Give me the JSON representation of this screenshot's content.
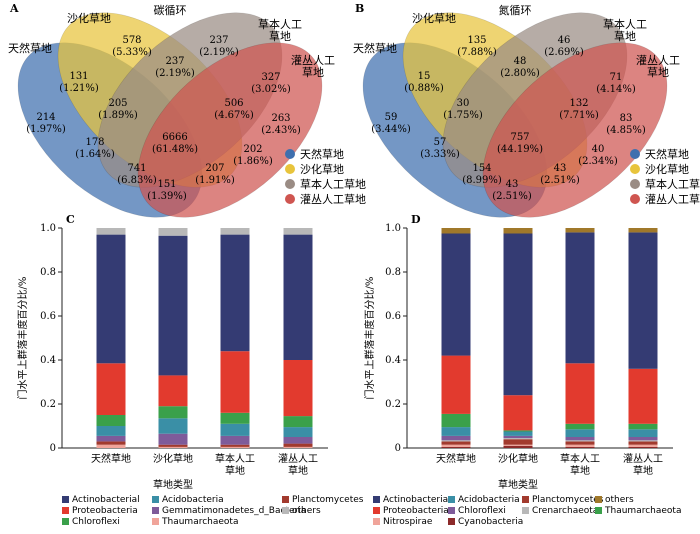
{
  "chart_data": [
    {
      "panel": "A",
      "type": "venn",
      "title": "碳循环",
      "sets": [
        "天然草地",
        "沙化草地",
        "草本人工草地",
        "灌丛人工草地"
      ],
      "set_labels": [
        "天然草地",
        "沙化草地",
        "草本人工\n草地",
        "灌丛人工\n草地"
      ],
      "colors": [
        "#3f6fae",
        "#e8c43c",
        "#9a8c84",
        "#cf5550"
      ],
      "regions": [
        {
          "sets": "1",
          "count": "214",
          "pct": "(1.97%)"
        },
        {
          "sets": "2",
          "count": "578",
          "pct": "(5.33%)"
        },
        {
          "sets": "3",
          "count": "237",
          "pct": "(2.19%)"
        },
        {
          "sets": "4",
          "count": "263",
          "pct": "(2.43%)"
        },
        {
          "sets": "12",
          "count": "131",
          "pct": "(1.21%)"
        },
        {
          "sets": "23",
          "count": "237",
          "pct": "(2.19%)"
        },
        {
          "sets": "34",
          "count": "327",
          "pct": "(3.02%)"
        },
        {
          "sets": "123",
          "count": "205",
          "pct": "(1.89%)"
        },
        {
          "sets": "234",
          "count": "506",
          "pct": "(4.67%)"
        },
        {
          "sets": "1234",
          "count": "6666",
          "pct": "(61.48%)"
        },
        {
          "sets": "13",
          "count": "178",
          "pct": "(1.64%)"
        },
        {
          "sets": "24",
          "count": "202",
          "pct": "(1.86%)"
        },
        {
          "sets": "134",
          "count": "741",
          "pct": "(6.83%)"
        },
        {
          "sets": "124",
          "count": "207",
          "pct": "(1.91%)"
        },
        {
          "sets": "14",
          "count": "151",
          "pct": "(1.39%)"
        }
      ]
    },
    {
      "panel": "B",
      "type": "venn",
      "title": "氮循环",
      "sets": [
        "天然草地",
        "沙化草地",
        "草本人工草地",
        "灌丛人工草地"
      ],
      "set_labels": [
        "天然草地",
        "沙化草地",
        "草本人工\n草地",
        "灌丛人工\n草地"
      ],
      "colors": [
        "#3f6fae",
        "#e8c43c",
        "#9a8c84",
        "#cf5550"
      ],
      "regions": [
        {
          "sets": "1",
          "count": "59",
          "pct": "(3.44%)"
        },
        {
          "sets": "2",
          "count": "135",
          "pct": "(7.88%)"
        },
        {
          "sets": "3",
          "count": "46",
          "pct": "(2.69%)"
        },
        {
          "sets": "4",
          "count": "83",
          "pct": "(4.85%)"
        },
        {
          "sets": "12",
          "count": "15",
          "pct": "(0.88%)"
        },
        {
          "sets": "23",
          "count": "48",
          "pct": "(2.80%)"
        },
        {
          "sets": "34",
          "count": "71",
          "pct": "(4.14%)"
        },
        {
          "sets": "123",
          "count": "30",
          "pct": "(1.75%)"
        },
        {
          "sets": "234",
          "count": "132",
          "pct": "(7.71%)"
        },
        {
          "sets": "1234",
          "count": "757",
          "pct": "(44.19%)"
        },
        {
          "sets": "13",
          "count": "57",
          "pct": "(3.33%)"
        },
        {
          "sets": "24",
          "count": "40",
          "pct": "(2.34%)"
        },
        {
          "sets": "134",
          "count": "154",
          "pct": "(8.99%)"
        },
        {
          "sets": "124",
          "count": "43",
          "pct": "(2.51%)"
        },
        {
          "sets": "14",
          "count": "43",
          "pct": "(2.51%)"
        }
      ]
    },
    {
      "panel": "C",
      "type": "bar",
      "stacked": true,
      "categories": [
        "天然草地",
        "沙化草地",
        "草本人工\n草地",
        "灌丛人工\n草地"
      ],
      "xlabel": "草地类型",
      "ylabel": "门水平上群落丰度百分比/%",
      "ylim": [
        0,
        1
      ],
      "yticks": [
        "0",
        "0.2",
        "0.4",
        "0.6",
        "0.8",
        "1.0"
      ],
      "series": [
        {
          "name": "Thaumarchaeota",
          "color": "#f0a49a",
          "values": [
            0.015,
            0.005,
            0.005,
            0.005
          ]
        },
        {
          "name": "Planctomycetes",
          "color": "#a23a2e",
          "values": [
            0.015,
            0.01,
            0.01,
            0.015
          ]
        },
        {
          "name": "Gemmatimonadetes_d_Bacteria",
          "color": "#7e5b9a",
          "values": [
            0.025,
            0.05,
            0.04,
            0.03
          ]
        },
        {
          "name": "Acidobacteria",
          "color": "#3a8fa6",
          "values": [
            0.045,
            0.07,
            0.055,
            0.045
          ]
        },
        {
          "name": "Chloroflexi",
          "color": "#3aa04a",
          "values": [
            0.05,
            0.055,
            0.05,
            0.05
          ]
        },
        {
          "name": "Proteobacteria",
          "color": "#e23a2e",
          "values": [
            0.235,
            0.14,
            0.28,
            0.255
          ]
        },
        {
          "name": "Actinobacterial",
          "color": "#343b73",
          "values": [
            0.585,
            0.635,
            0.53,
            0.57
          ]
        },
        {
          "name": "others",
          "color": "#b8b8b8",
          "values": [
            0.03,
            0.035,
            0.03,
            0.03
          ]
        }
      ],
      "legend": [
        "Actinobacterial",
        "Acidobacteria",
        "Planctomycetes",
        "Proteobacteria",
        "Gemmatimonadetes_d_Bacteria",
        "others",
        "Chloroflexi",
        "Thaumarchaeota"
      ]
    },
    {
      "panel": "D",
      "type": "bar",
      "stacked": true,
      "categories": [
        "天然草地",
        "沙化草地",
        "草本人工\n草地",
        "灌丛人工\n草地"
      ],
      "xlabel": "草地类型",
      "ylabel": "门水平上群落丰度百分比/%",
      "ylim": [
        0,
        1
      ],
      "yticks": [
        "0",
        "0.2",
        "0.4",
        "0.6",
        "0.8",
        "1.0"
      ],
      "series": [
        {
          "name": "Cyanobacteria",
          "color": "#8c2a2a",
          "values": [
            0.005,
            0.01,
            0.005,
            0.005
          ]
        },
        {
          "name": "Nitrospirae",
          "color": "#f0a49a",
          "values": [
            0.01,
            0.005,
            0.01,
            0.01
          ]
        },
        {
          "name": "Planctomycetes",
          "color": "#a23a2e",
          "values": [
            0.015,
            0.025,
            0.015,
            0.015
          ]
        },
        {
          "name": "Crenarchaeota",
          "color": "#b8b8b8",
          "values": [
            0.005,
            0.005,
            0.005,
            0.005
          ]
        },
        {
          "name": "Chloroflexi",
          "color": "#7e5b9a",
          "values": [
            0.02,
            0.01,
            0.015,
            0.015
          ]
        },
        {
          "name": "Acidobacteria",
          "color": "#3a8fa6",
          "values": [
            0.04,
            0.02,
            0.035,
            0.035
          ]
        },
        {
          "name": "Thaumarchaeota",
          "color": "#3aa04a",
          "values": [
            0.06,
            0.005,
            0.025,
            0.025
          ]
        },
        {
          "name": "Proteobacteria",
          "color": "#e23a2e",
          "values": [
            0.265,
            0.16,
            0.275,
            0.25
          ]
        },
        {
          "name": "Actinobacteria",
          "color": "#343b73",
          "values": [
            0.555,
            0.735,
            0.595,
            0.62
          ]
        },
        {
          "name": "others",
          "color": "#a0782a",
          "values": [
            0.025,
            0.025,
            0.02,
            0.02
          ]
        }
      ],
      "legend": [
        "Actinobacteria",
        "Acidobacteria",
        "Planctomycetes",
        "others",
        "Proteobacteria",
        "Chloroflexi",
        "Crenarchaeota",
        "Thaumarchaeota",
        "Nitrospirae",
        "Cyanobacteria"
      ]
    }
  ]
}
